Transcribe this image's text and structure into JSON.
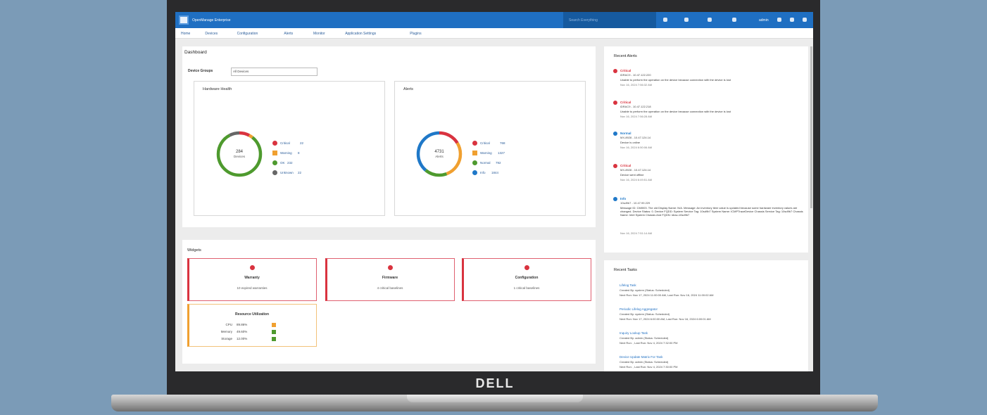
{
  "app": {
    "title": "OpenManage Enterprise",
    "search": "Search Everything",
    "user": "admin",
    "nav": [
      "Home",
      "Devices",
      "Configuration",
      "Alerts",
      "Monitor",
      "Application Settings",
      "Plugins"
    ]
  },
  "dashboard": {
    "title": "Dashboard",
    "device_groups_label": "Device Groups",
    "device_group_selected": "All Devices"
  },
  "hardware_health": {
    "title": "Hardware Health",
    "total": 284,
    "total_label": "Devices",
    "legend": [
      {
        "label": "Critical",
        "value": 22,
        "color": "#d9333f"
      },
      {
        "label": "Warning",
        "value": 8,
        "color": "#f0a030"
      },
      {
        "label": "OK",
        "value": 232,
        "color": "#4e9a2e"
      },
      {
        "label": "Unknown",
        "value": 22,
        "color": "#666666"
      }
    ]
  },
  "alerts": {
    "title": "Alerts",
    "total": 4731,
    "total_label": "Alerts",
    "legend": [
      {
        "label": "Critical",
        "value": 768,
        "color": "#d9333f"
      },
      {
        "label": "Warning",
        "value": 1327,
        "color": "#f0a030"
      },
      {
        "label": "Normal",
        "value": 792,
        "color": "#4e9a2e"
      },
      {
        "label": "Info",
        "value": 1844,
        "color": "#1f78c8"
      }
    ]
  },
  "widgets": {
    "title": "Widgets",
    "items": [
      {
        "title": "Warranty",
        "text": "10 expired warranties"
      },
      {
        "title": "Firmware",
        "text": "4 critical baselines"
      },
      {
        "title": "Configuration",
        "text": "1 critical baselines"
      }
    ],
    "resource": {
      "title": "Resource Utilization",
      "rows": [
        {
          "label": "CPU",
          "value": "89.86%"
        },
        {
          "label": "Memory",
          "value": "49.60%"
        },
        {
          "label": "Storage",
          "value": "12.00%"
        }
      ]
    }
  },
  "recent_alerts": {
    "title": "Recent Alerts",
    "items": [
      {
        "severity": "Critical",
        "source": "iDRAC9 - 10.47.122.220",
        "message": "Unable to perform the operation on the device because connection with the device is lost",
        "date": "Nov 16, 2024 7:56:32 AM"
      },
      {
        "severity": "Critical",
        "source": "iDRAC9 - 10.47.122.218",
        "message": "Unable to perform the operation on the device because connection with the device is lost",
        "date": "Nov 16, 2024 7:56:28 AM"
      },
      {
        "severity": "Normal",
        "source": "MX-8928 - 10.47.124.14",
        "message": "Device is online",
        "date": "Nov 16, 2024 6:50:06 AM"
      },
      {
        "severity": "Critical",
        "source": "MX-8928 - 10.47.124.14",
        "message": "Device went offline",
        "date": "Nov 16, 2024 6:49:51 AM"
      },
      {
        "severity": "Info",
        "source": "10sd9b7 - 10.47.99.229",
        "message": "Message ID: CMI003. The old Display Name: N/A. Message: An inventory item value is updated because some hardware inventory values are changed. Device Status: 0. Device FQDD: System Service Tag: 10sd9b7 System Name: ICMPTraceDevice Chassis Service Tag: 10sd9b7 Chassis Name: Intel System Chassis And FQDN: idrac-10sd9b7",
        "date": "Nov 16, 2024 7:51:14 AM"
      }
    ]
  },
  "recent_tasks": {
    "title": "Recent Tasks",
    "items": [
      {
        "name": "Lifelog Task",
        "created": "Created By: system (Status: Scheduled)",
        "runs": "Next Run: Nov 17, 2024 11:00:00 AM, Last Run: Nov 16, 2024 11:00:02 AM"
      },
      {
        "name": "Periodic Lifelog Aggregator",
        "created": "Created By: system (Status: Scheduled)",
        "runs": "Next Run: Nov 17, 2024 6:00:00 AM, Last Run: Nov 16, 2024 6:00:01 AM"
      },
      {
        "name": "Inquiry Lookup Task",
        "created": "Created By: admin (Status: Scheduled)",
        "runs": "Next Run: , Last Run: Nov 4, 2024 7:32:00 PM"
      },
      {
        "name": "Device Update Matrix For Task",
        "created": "Created By: admin (Status: Scheduled)",
        "runs": "Next Run: , Last Run: Nov 4, 2024 7:30:00 PM"
      }
    ]
  },
  "brand": "DELL"
}
